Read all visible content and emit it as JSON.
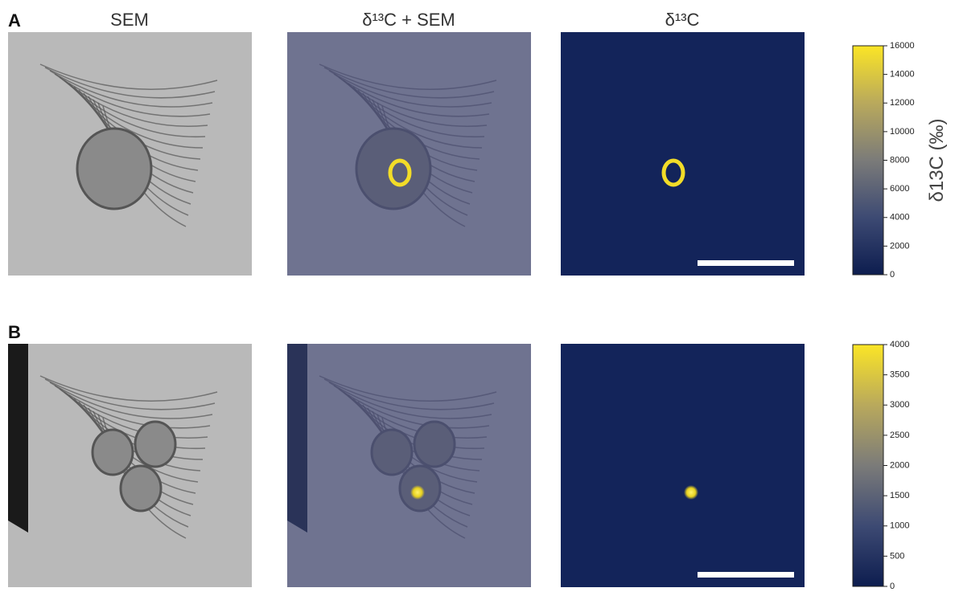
{
  "figure": {
    "column_titles": [
      "SEM",
      "δ¹³C + SEM",
      "δ¹³C"
    ],
    "panels": [
      {
        "label": "A",
        "colorbar": {
          "lim": [
            0,
            16000
          ],
          "ticks": [
            0,
            2000,
            4000,
            6000,
            8000,
            10000,
            12000,
            14000,
            16000
          ],
          "label": "δ13C (‰)"
        }
      },
      {
        "label": "B",
        "colorbar": {
          "lim": [
            0,
            4000
          ],
          "ticks": [
            0,
            500,
            1000,
            1500,
            2000,
            2500,
            3000,
            3500,
            4000
          ]
        }
      }
    ]
  }
}
